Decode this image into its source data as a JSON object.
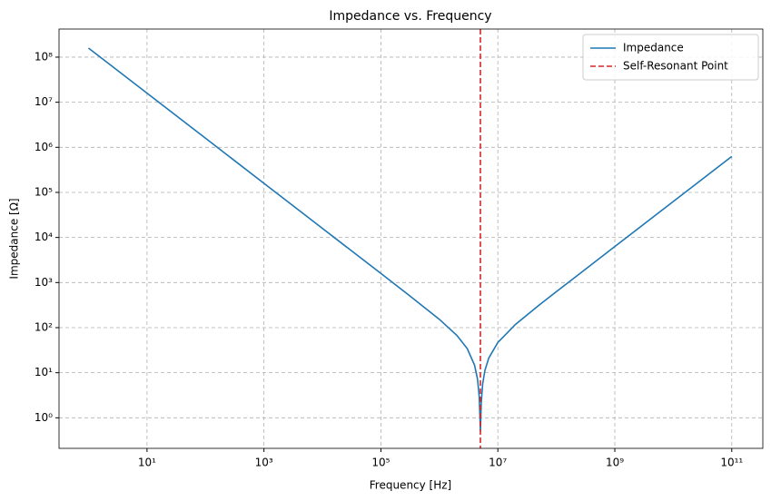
{
  "chart_data": {
    "type": "line",
    "title": "Impedance vs. Frequency",
    "x_label": "Frequency [Hz]",
    "y_label": "Impedance [Ω]",
    "xscale": "log",
    "yscale": "log",
    "x": [
      1,
      10,
      100,
      1000,
      10000,
      100000,
      300000,
      1000000,
      2000000,
      3000000,
      4000000,
      4500000,
      4800000,
      5000000,
      5030000,
      5200000,
      5500000,
      6000000,
      7000000,
      10000000,
      20000000,
      50000000,
      100000000,
      1000000000,
      10000000000,
      100000000000
    ],
    "series": [
      {
        "name": "Impedance",
        "color": "#1f77b4",
        "values": [
          159000000,
          15900000,
          1590000,
          159000,
          15900,
          1591,
          528.6,
          152.9,
          67.0,
          34.2,
          14.66,
          7.1,
          3.0,
          0.65,
          0.5,
          2.12,
          5.62,
          11.17,
          21.24,
          46.9,
          117.7,
          311.0,
          626.7,
          6283,
          62832,
          628319
        ]
      }
    ],
    "reference_line": {
      "name": "Self-Resonant Point",
      "x": 5030000,
      "color": "#d62728"
    },
    "xlim": [
      0.313,
      340000000000
    ],
    "ylim": [
      0.21,
      420000000
    ],
    "xticks": [
      {
        "value": 10,
        "label": "10¹"
      },
      {
        "value": 1000,
        "label": "10³"
      },
      {
        "value": 100000,
        "label": "10⁵"
      },
      {
        "value": 10000000,
        "label": "10⁷"
      },
      {
        "value": 1000000000,
        "label": "10⁹"
      },
      {
        "value": 100000000000,
        "label": "10¹¹"
      }
    ],
    "yticks": [
      {
        "value": 1,
        "label": "10⁰"
      },
      {
        "value": 10,
        "label": "10¹"
      },
      {
        "value": 100,
        "label": "10²"
      },
      {
        "value": 1000,
        "label": "10³"
      },
      {
        "value": 10000,
        "label": "10⁴"
      },
      {
        "value": 100000,
        "label": "10⁵"
      },
      {
        "value": 1000000,
        "label": "10⁶"
      },
      {
        "value": 10000000,
        "label": "10⁷"
      },
      {
        "value": 100000000,
        "label": "10⁸"
      }
    ],
    "grid": true,
    "legend": "upper right"
  }
}
